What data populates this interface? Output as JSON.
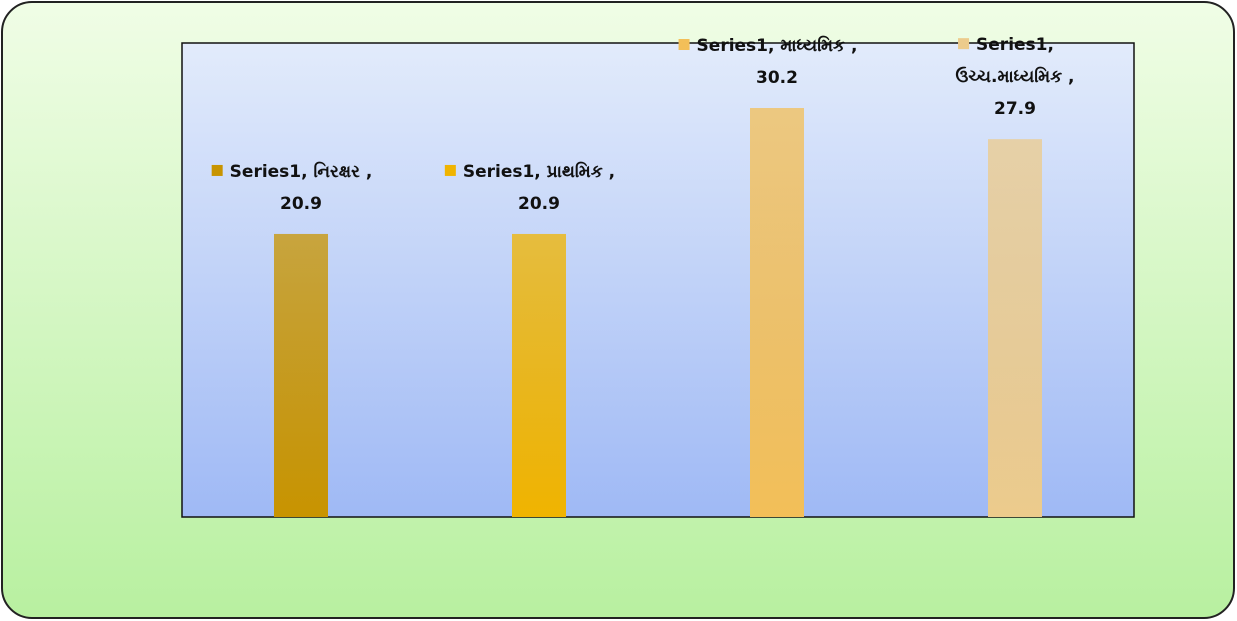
{
  "chart_data": {
    "type": "bar",
    "values": [
      20.9,
      20.9,
      30.2,
      27.9
    ],
    "value_labels": [
      "Series1, નિરક્ષર , 20.9",
      "Series1, પ્રાથમિક , 20.9",
      "Series1, માધ્યમિક , 30.2",
      "Series1, ઉચ્ચ.માધ્યમિક , 27.9"
    ],
    "colors": [
      "#c89400",
      "#f0b400",
      "#f3bf58",
      "#eccb8c"
    ],
    "ylim": [
      0,
      35
    ]
  }
}
